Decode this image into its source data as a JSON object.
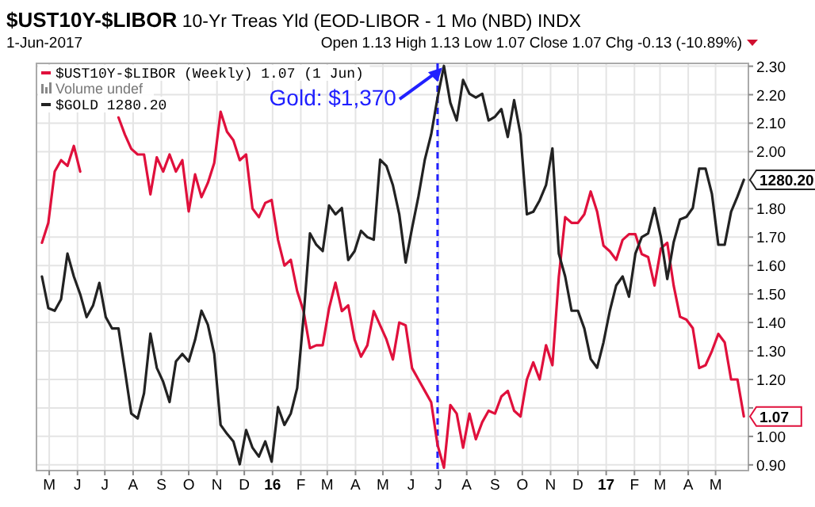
{
  "chart_data": {
    "type": "line",
    "title": "$UST10Y-$LIBOR 10-Yr Treas Yld (EOD-LIBOR - 1 Mo (NBD) INDX",
    "subtitle": "1-Jun-2017",
    "annotations": [
      "Open 1.13 High 1.13 Low 1.07 Close 1.07 Chg -0.13 (-10.89%)",
      "Volume undef"
    ],
    "x": [
      "2015-04-23",
      "2015-04-30",
      "2015-05-07",
      "2015-05-14",
      "2015-05-21",
      "2015-05-28",
      "2015-06-04",
      "2015-06-11",
      "2015-06-18",
      "2015-06-25",
      "2015-07-02",
      "2015-07-09",
      "2015-07-16",
      "2015-07-23",
      "2015-07-30",
      "2015-08-06",
      "2015-08-13",
      "2015-08-20",
      "2015-08-27",
      "2015-09-03",
      "2015-09-10",
      "2015-09-17",
      "2015-09-24",
      "2015-10-01",
      "2015-10-08",
      "2015-10-15",
      "2015-10-22",
      "2015-10-29",
      "2015-11-05",
      "2015-11-12",
      "2015-11-19",
      "2015-11-26",
      "2015-12-03",
      "2015-12-10",
      "2015-12-17",
      "2015-12-24",
      "2015-12-31",
      "2016-01-07",
      "2016-01-14",
      "2016-01-21",
      "2016-01-28",
      "2016-02-04",
      "2016-02-11",
      "2016-02-18",
      "2016-02-25",
      "2016-03-03",
      "2016-03-10",
      "2016-03-17",
      "2016-03-24",
      "2016-03-31",
      "2016-04-07",
      "2016-04-14",
      "2016-04-21",
      "2016-04-28",
      "2016-05-05",
      "2016-05-12",
      "2016-05-19",
      "2016-05-26",
      "2016-06-02",
      "2016-06-09",
      "2016-06-16",
      "2016-06-23",
      "2016-06-30",
      "2016-07-07",
      "2016-07-14",
      "2016-07-21",
      "2016-07-28",
      "2016-08-04",
      "2016-08-11",
      "2016-08-18",
      "2016-08-25",
      "2016-09-01",
      "2016-09-08",
      "2016-09-15",
      "2016-09-22",
      "2016-09-29",
      "2016-10-06",
      "2016-10-13",
      "2016-10-20",
      "2016-10-27",
      "2016-11-03",
      "2016-11-10",
      "2016-11-17",
      "2016-11-24",
      "2016-12-01",
      "2016-12-08",
      "2016-12-15",
      "2016-12-22",
      "2016-12-29",
      "2017-01-05",
      "2017-01-12",
      "2017-01-19",
      "2017-01-26",
      "2017-02-02",
      "2017-02-09",
      "2017-02-16",
      "2017-02-23",
      "2017-03-02",
      "2017-03-09",
      "2017-03-16",
      "2017-03-23",
      "2017-03-30",
      "2017-04-06",
      "2017-04-13",
      "2017-04-20",
      "2017-04-27",
      "2017-05-04",
      "2017-05-11",
      "2017-05-18",
      "2017-05-25",
      "2017-06-01"
    ],
    "series": [
      {
        "name": "$UST10Y-$LIBOR (Weekly) 1.07 (1 Jun)",
        "color": "#e0103c",
        "values": [
          1.68,
          1.75,
          1.93,
          1.97,
          1.95,
          2.02,
          1.93,
          null,
          null,
          null,
          null,
          null,
          2.12,
          2.06,
          2.01,
          1.99,
          1.99,
          1.85,
          1.98,
          1.93,
          1.99,
          1.93,
          1.97,
          1.79,
          1.92,
          1.84,
          1.89,
          1.96,
          2.14,
          2.07,
          2.04,
          1.97,
          1.99,
          1.8,
          1.77,
          1.82,
          1.83,
          1.69,
          1.6,
          1.62,
          1.51,
          1.44,
          1.31,
          1.32,
          1.32,
          1.45,
          1.54,
          1.44,
          1.46,
          1.34,
          1.28,
          1.32,
          1.44,
          1.39,
          1.34,
          1.27,
          1.4,
          1.39,
          1.24,
          1.2,
          1.16,
          1.12,
          0.97,
          0.89,
          1.11,
          1.08,
          0.96,
          1.08,
          0.99,
          1.05,
          1.09,
          1.08,
          1.14,
          1.16,
          1.09,
          1.07,
          1.2,
          1.26,
          1.2,
          1.32,
          1.25,
          1.56,
          1.77,
          1.75,
          1.75,
          1.78,
          1.86,
          1.79,
          1.67,
          1.65,
          1.62,
          1.69,
          1.71,
          1.71,
          1.64,
          1.63,
          1.53,
          1.66,
          1.68,
          1.53,
          1.42,
          1.41,
          1.38,
          1.24,
          1.25,
          1.3,
          1.36,
          1.33,
          1.2,
          1.2,
          1.07
        ],
        "value_labels": [
          null,
          null,
          null,
          null,
          null,
          null,
          null,
          null,
          null,
          null,
          null,
          null,
          null,
          null,
          null,
          null,
          null,
          null,
          null,
          null,
          null,
          null,
          null,
          null,
          null,
          null,
          null,
          null,
          null,
          null,
          null,
          null,
          null,
          null,
          null,
          null,
          null,
          null,
          null,
          null,
          null,
          null,
          null,
          null,
          null,
          null,
          null,
          null,
          null,
          null,
          null,
          null,
          null,
          null,
          null,
          null,
          null,
          null,
          null,
          null,
          null,
          null,
          null,
          null,
          null,
          null,
          null,
          null,
          null,
          null,
          null,
          null,
          null,
          null,
          null,
          null,
          null,
          null,
          null,
          null,
          null,
          null,
          null,
          null,
          null,
          null,
          null,
          null,
          null,
          null,
          null,
          null,
          null,
          null,
          null,
          null,
          null,
          null,
          null,
          null,
          null,
          null,
          null,
          null,
          null,
          null,
          null,
          null,
          null,
          null,
          "1.07"
        ]
      },
      {
        "name": "$GOLD 1280.20",
        "color": "#222222",
        "axis": "y2",
        "values": [
          1204,
          1179,
          1177,
          1186,
          1222,
          1204,
          1190,
          1172,
          1181,
          1199,
          1172,
          1163,
          1163,
          1130,
          1096,
          1092,
          1112,
          1159,
          1132,
          1121,
          1105,
          1137,
          1143,
          1137,
          1154,
          1177,
          1166,
          1143,
          1087,
          1080,
          1074,
          1056,
          1083,
          1069,
          1062,
          1074,
          1058,
          1101,
          1087,
          1096,
          1116,
          1172,
          1238,
          1229,
          1224,
          1260,
          1253,
          1258,
          1217,
          1224,
          1240,
          1235,
          1233,
          1296,
          1291,
          1276,
          1253,
          1215,
          1242,
          1267,
          1296,
          1316,
          1345,
          1370,
          1341,
          1327,
          1359,
          1348,
          1345,
          1348,
          1327,
          1330,
          1336,
          1314,
          1343,
          1316,
          1253,
          1255,
          1264,
          1276,
          1305,
          1222,
          1204,
          1177,
          1177,
          1163,
          1139,
          1132,
          1152,
          1177,
          1197,
          1204,
          1188,
          1222,
          1235,
          1238,
          1258,
          1235,
          1202,
          1231,
          1249,
          1251,
          1258,
          1289,
          1289,
          1269,
          1229,
          1229,
          1255,
          1267,
          1280.2
        ],
        "value_labels": [
          null,
          null,
          null,
          null,
          null,
          null,
          null,
          null,
          null,
          null,
          null,
          null,
          null,
          null,
          null,
          null,
          null,
          null,
          null,
          null,
          null,
          null,
          null,
          null,
          null,
          null,
          null,
          null,
          null,
          null,
          null,
          null,
          null,
          null,
          null,
          null,
          null,
          null,
          null,
          null,
          null,
          null,
          null,
          null,
          null,
          null,
          null,
          null,
          null,
          null,
          null,
          null,
          null,
          null,
          null,
          null,
          null,
          null,
          null,
          null,
          null,
          null,
          null,
          "Gold: $1,370",
          null,
          null,
          null,
          null,
          null,
          null,
          null,
          null,
          null,
          null,
          null,
          null,
          null,
          null,
          null,
          null,
          null,
          null,
          null,
          null,
          null,
          null,
          null,
          null,
          null,
          null,
          null,
          null,
          null,
          null,
          null,
          null,
          null,
          null,
          null,
          null,
          null,
          null,
          null,
          null,
          null,
          null,
          null,
          null,
          null,
          null,
          "1280.20"
        ]
      }
    ],
    "xlim": [
      "2015-04-17",
      "2017-06-06"
    ],
    "xticks": [
      {
        "value": "2015-05-01",
        "label": "M"
      },
      {
        "value": "2015-06-01",
        "label": "J"
      },
      {
        "value": "2015-07-01",
        "label": "J"
      },
      {
        "value": "2015-08-01",
        "label": "A"
      },
      {
        "value": "2015-09-01",
        "label": "S"
      },
      {
        "value": "2015-10-01",
        "label": "O"
      },
      {
        "value": "2015-11-01",
        "label": "N"
      },
      {
        "value": "2015-12-01",
        "label": "D"
      },
      {
        "value": "2016-01-01",
        "label": "16"
      },
      {
        "value": "2016-02-01",
        "label": "F"
      },
      {
        "value": "2016-03-01",
        "label": "M"
      },
      {
        "value": "2016-04-01",
        "label": "A"
      },
      {
        "value": "2016-05-01",
        "label": "M"
      },
      {
        "value": "2016-06-01",
        "label": "J"
      },
      {
        "value": "2016-07-01",
        "label": "J"
      },
      {
        "value": "2016-08-01",
        "label": "A"
      },
      {
        "value": "2016-09-01",
        "label": "S"
      },
      {
        "value": "2016-10-01",
        "label": "O"
      },
      {
        "value": "2016-11-01",
        "label": "N"
      },
      {
        "value": "2016-12-01",
        "label": "D"
      },
      {
        "value": "2017-01-01",
        "label": "17"
      },
      {
        "value": "2017-02-01",
        "label": "F"
      },
      {
        "value": "2017-03-01",
        "label": "M"
      },
      {
        "value": "2017-04-01",
        "label": "A"
      },
      {
        "value": "2017-05-01",
        "label": "M"
      }
    ],
    "ylim": [
      0.88,
      2.31
    ],
    "yticks": [
      {
        "value": 0.9,
        "label": "0.90"
      },
      {
        "value": 1.0,
        "label": "1.00"
      },
      {
        "value": 1.1,
        "label": null
      },
      {
        "value": 1.2,
        "label": "1.20"
      },
      {
        "value": 1.3,
        "label": "1.30"
      },
      {
        "value": 1.4,
        "label": "1.40"
      },
      {
        "value": 1.5,
        "label": "1.50"
      },
      {
        "value": 1.6,
        "label": "1.60"
      },
      {
        "value": 1.7,
        "label": "1.70"
      },
      {
        "value": 1.8,
        "label": "1.80"
      },
      {
        "value": 1.9,
        "label": null
      },
      {
        "value": 2.0,
        "label": "2.00"
      },
      {
        "value": 2.1,
        "label": "2.10"
      },
      {
        "value": 2.2,
        "label": "2.20"
      },
      {
        "value": 2.3,
        "label": "2.30"
      }
    ],
    "y2lim": [
      1051,
      1372
    ],
    "ref_lines": [
      {
        "axis": "x",
        "value": "2016-06-30",
        "color": "#2020ff",
        "line_style": "dashed"
      }
    ],
    "grid": true,
    "legend": "top left",
    "line_style": "solid",
    "marker": "none"
  }
}
